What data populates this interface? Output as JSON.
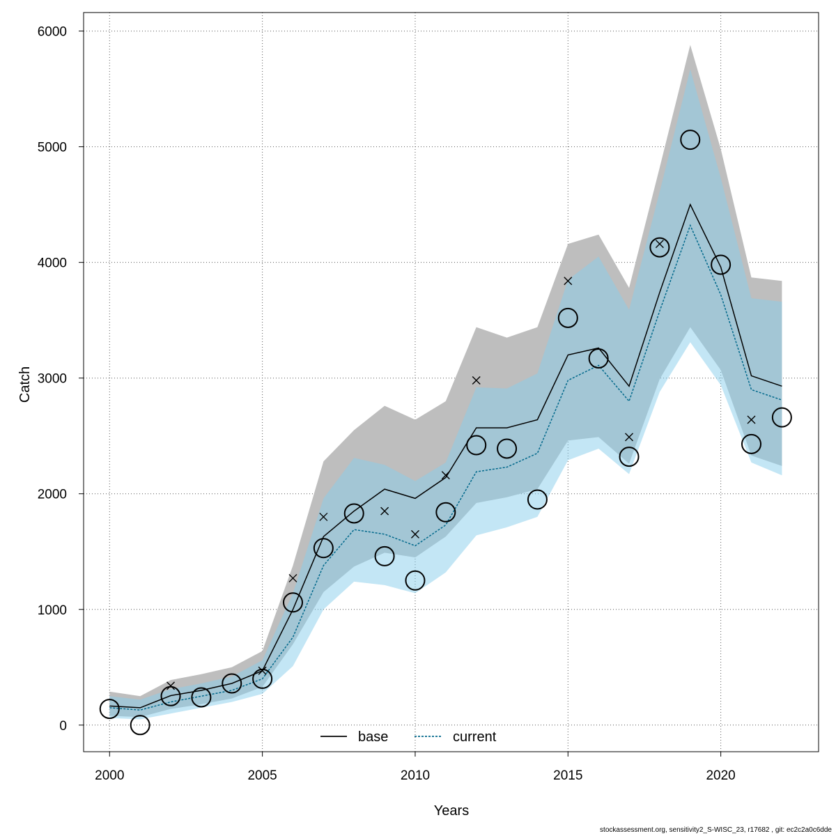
{
  "chart_data": {
    "type": "line",
    "title": "",
    "xlabel": "Years",
    "ylabel": "Catch",
    "xlim": [
      1999.15,
      2023.2
    ],
    "ylim": [
      -230,
      6160
    ],
    "x_ticks": [
      2000,
      2005,
      2010,
      2015,
      2020
    ],
    "y_ticks": [
      0,
      1000,
      2000,
      3000,
      4000,
      5000,
      6000
    ],
    "grid": true,
    "legend_position": "bottom-center",
    "x": [
      2000,
      2001,
      2002,
      2003,
      2004,
      2005,
      2006,
      2007,
      2008,
      2009,
      2010,
      2011,
      2012,
      2013,
      2014,
      2015,
      2016,
      2017,
      2018,
      2019,
      2020,
      2021,
      2022
    ],
    "series": [
      {
        "name": "base",
        "color": "#000000",
        "line_style": "solid",
        "band_color": "#bebebe",
        "values": [
          165,
          150,
          255,
          300,
          360,
          470,
          1000,
          1630,
          1850,
          2040,
          1960,
          2140,
          2570,
          2570,
          2640,
          3200,
          3260,
          2930,
          3740,
          4500,
          3960,
          3020,
          2930
        ],
        "upper": [
          290,
          250,
          390,
          440,
          500,
          640,
          1380,
          2280,
          2550,
          2760,
          2640,
          2800,
          3440,
          3350,
          3440,
          4160,
          4240,
          3780,
          4820,
          5880,
          4980,
          3870,
          3840
        ],
        "lower": [
          80,
          70,
          140,
          180,
          230,
          330,
          700,
          1150,
          1370,
          1490,
          1450,
          1630,
          1920,
          1970,
          2040,
          2460,
          2490,
          2260,
          2990,
          3440,
          3070,
          2330,
          2240
        ]
      },
      {
        "name": "current",
        "color": "#00688b",
        "line_style": "dotted",
        "band_color": "#87ceeb",
        "values": [
          150,
          130,
          200,
          250,
          300,
          400,
          760,
          1380,
          1690,
          1650,
          1550,
          1730,
          2190,
          2230,
          2350,
          2980,
          3110,
          2800,
          3580,
          4320,
          3720,
          2900,
          2810
        ],
        "upper": [
          250,
          220,
          310,
          360,
          420,
          560,
          1140,
          1960,
          2310,
          2250,
          2110,
          2270,
          2920,
          2910,
          3040,
          3850,
          4050,
          3590,
          4610,
          5670,
          4730,
          3690,
          3660
        ],
        "lower": [
          60,
          50,
          100,
          150,
          200,
          270,
          510,
          1000,
          1240,
          1210,
          1140,
          1320,
          1640,
          1710,
          1800,
          2290,
          2390,
          2170,
          2880,
          3310,
          2940,
          2270,
          2160
        ]
      }
    ],
    "observed_circles": [
      140,
      0,
      250,
      240,
      360,
      400,
      1060,
      1530,
      1830,
      1460,
      1250,
      1840,
      2420,
      2390,
      1950,
      3520,
      3170,
      2320,
      4130,
      5060,
      3980,
      2430,
      2660
    ],
    "observed_crosses": [
      {
        "x": 2002,
        "y": 340
      },
      {
        "x": 2005,
        "y": 470
      },
      {
        "x": 2006,
        "y": 1270
      },
      {
        "x": 2007,
        "y": 1800
      },
      {
        "x": 2009,
        "y": 1850
      },
      {
        "x": 2010,
        "y": 1650
      },
      {
        "x": 2011,
        "y": 2160
      },
      {
        "x": 2012,
        "y": 2980
      },
      {
        "x": 2015,
        "y": 3840
      },
      {
        "x": 2017,
        "y": 2490
      },
      {
        "x": 2018,
        "y": 4160
      },
      {
        "x": 2021,
        "y": 2640
      }
    ]
  },
  "footer": "stockassessment.org, sensitivity2_S-WISC_23, r17682 , git: ec2c2a0c6dde"
}
